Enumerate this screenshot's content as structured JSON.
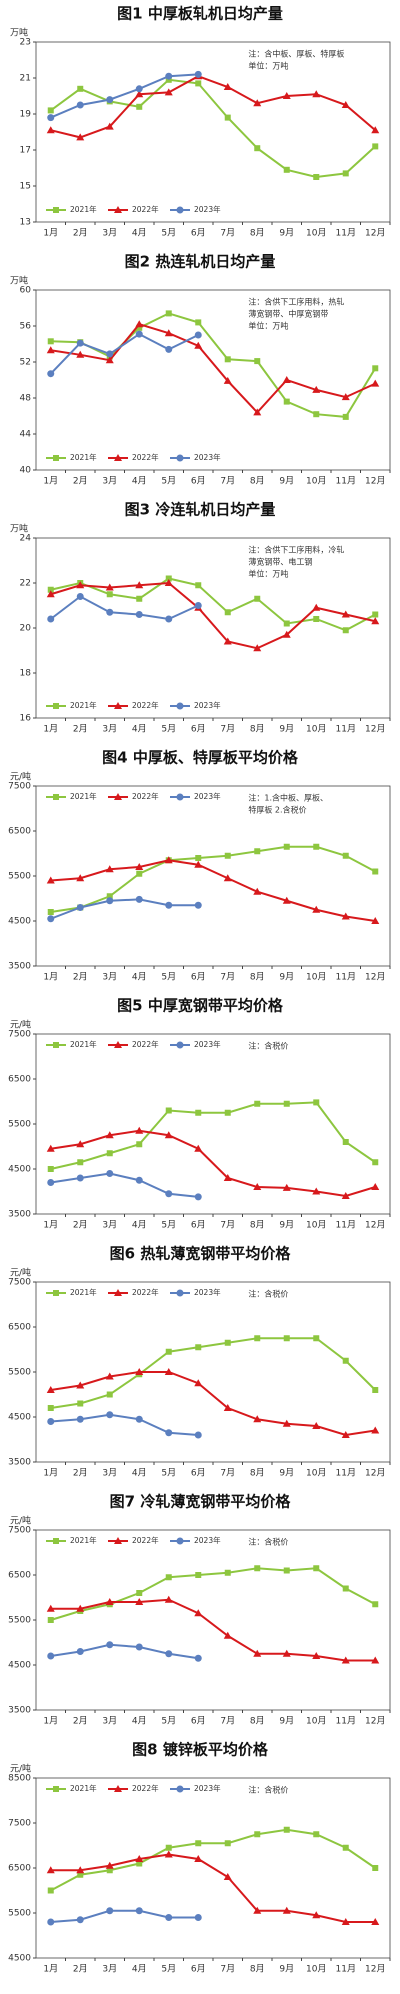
{
  "chart_data": [
    {
      "type": "line",
      "title": "图1  中厚板轧机日均产量",
      "ylabel": "万吨",
      "note": [
        "注：含中板、厚板、特厚板",
        "单位：万吨"
      ],
      "legend": "lower left",
      "categories": [
        "1月",
        "2月",
        "3月",
        "4月",
        "5月",
        "6月",
        "7月",
        "8月",
        "9月",
        "10月",
        "11月",
        "12月"
      ],
      "ylim": [
        13,
        23
      ],
      "yticks": [
        13,
        15,
        17,
        19,
        21,
        23
      ],
      "series": [
        {
          "name": "2021年",
          "color": "#8dc63f",
          "marker": "square",
          "values": [
            19.2,
            20.4,
            19.7,
            19.4,
            20.9,
            20.7,
            18.8,
            17.1,
            15.9,
            15.5,
            15.7,
            17.2
          ]
        },
        {
          "name": "2022年",
          "color": "#d7191c",
          "marker": "triangle",
          "values": [
            18.1,
            17.7,
            18.3,
            20.1,
            20.2,
            21.1,
            20.5,
            19.6,
            20.0,
            20.1,
            19.5,
            18.1
          ]
        },
        {
          "name": "2023年",
          "color": "#5b7fbf",
          "marker": "circle",
          "values": [
            18.8,
            19.5,
            19.8,
            20.4,
            21.1,
            21.2,
            null,
            null,
            null,
            null,
            null,
            null
          ]
        }
      ]
    },
    {
      "type": "line",
      "title": "图2  热连轧机日均产量",
      "ylabel": "万吨",
      "note": [
        "注：含供下工序用料，热轧",
        "薄宽钢带、中厚宽钢带",
        "单位：万吨"
      ],
      "legend": "lower left",
      "categories": [
        "1月",
        "2月",
        "3月",
        "4月",
        "5月",
        "6月",
        "7月",
        "8月",
        "9月",
        "10月",
        "11月",
        "12月"
      ],
      "ylim": [
        40,
        60
      ],
      "yticks": [
        40,
        44,
        48,
        52,
        56,
        60
      ],
      "series": [
        {
          "name": "2021年",
          "color": "#8dc63f",
          "marker": "square",
          "values": [
            54.3,
            54.2,
            52.6,
            55.8,
            57.4,
            56.4,
            52.3,
            52.1,
            47.6,
            46.2,
            45.9,
            51.3
          ]
        },
        {
          "name": "2022年",
          "color": "#d7191c",
          "marker": "triangle",
          "values": [
            53.3,
            52.8,
            52.2,
            56.2,
            55.2,
            53.8,
            49.9,
            46.4,
            50.0,
            48.9,
            48.1,
            49.6
          ]
        },
        {
          "name": "2023年",
          "color": "#5b7fbf",
          "marker": "circle",
          "values": [
            50.7,
            54.1,
            52.9,
            55.1,
            53.4,
            55.0,
            null,
            null,
            null,
            null,
            null,
            null
          ]
        }
      ]
    },
    {
      "type": "line",
      "title": "图3  冷连轧机日均产量",
      "ylabel": "万吨",
      "note": [
        "注：含供下工序用料，冷轧",
        "薄宽钢带、电工钢",
        "单位：万吨"
      ],
      "legend": "lower left",
      "categories": [
        "1月",
        "2月",
        "3月",
        "4月",
        "5月",
        "6月",
        "7月",
        "8月",
        "9月",
        "10月",
        "11月",
        "12月"
      ],
      "ylim": [
        16,
        24
      ],
      "yticks": [
        16,
        18,
        20,
        22,
        24
      ],
      "series": [
        {
          "name": "2021年",
          "color": "#8dc63f",
          "marker": "square",
          "values": [
            21.7,
            22.0,
            21.5,
            21.3,
            22.2,
            21.9,
            20.7,
            21.3,
            20.2,
            20.4,
            19.9,
            20.6
          ]
        },
        {
          "name": "2022年",
          "color": "#d7191c",
          "marker": "triangle",
          "values": [
            21.5,
            21.9,
            21.8,
            21.9,
            22.0,
            20.9,
            19.4,
            19.1,
            19.7,
            20.9,
            20.6,
            20.3
          ]
        },
        {
          "name": "2023年",
          "color": "#5b7fbf",
          "marker": "circle",
          "values": [
            20.4,
            21.4,
            20.7,
            20.6,
            20.4,
            21.0,
            null,
            null,
            null,
            null,
            null,
            null
          ]
        }
      ]
    },
    {
      "type": "line",
      "title": "图4  中厚板、特厚板平均价格",
      "ylabel": "元/吨",
      "note": [
        "注：1.含中板、厚板、",
        "特厚板  2.含税价"
      ],
      "legend": "upper left",
      "categories": [
        "1月",
        "2月",
        "3月",
        "4月",
        "5月",
        "6月",
        "7月",
        "8月",
        "9月",
        "10月",
        "11月",
        "12月"
      ],
      "ylim": [
        3500,
        7500
      ],
      "yticks": [
        3500,
        4500,
        5500,
        6500,
        7500
      ],
      "series": [
        {
          "name": "2021年",
          "color": "#8dc63f",
          "marker": "square",
          "values": [
            4700,
            4800,
            5050,
            5550,
            5850,
            5900,
            5950,
            6050,
            6150,
            6150,
            5950,
            5600
          ]
        },
        {
          "name": "2022年",
          "color": "#d7191c",
          "marker": "triangle",
          "values": [
            5400,
            5450,
            5650,
            5700,
            5850,
            5750,
            5450,
            5150,
            4950,
            4750,
            4600,
            4500
          ]
        },
        {
          "name": "2023年",
          "color": "#5b7fbf",
          "marker": "circle",
          "values": [
            4550,
            4800,
            4950,
            4980,
            4850,
            4850,
            null,
            null,
            null,
            null,
            null,
            null
          ]
        }
      ]
    },
    {
      "type": "line",
      "title": "图5  中厚宽钢带平均价格",
      "ylabel": "元/吨",
      "note": [
        "注：含税价"
      ],
      "legend": "upper left",
      "categories": [
        "1月",
        "2月",
        "3月",
        "4月",
        "5月",
        "6月",
        "7月",
        "8月",
        "9月",
        "10月",
        "11月",
        "12月"
      ],
      "ylim": [
        3500,
        7500
      ],
      "yticks": [
        3500,
        4500,
        5500,
        6500,
        7500
      ],
      "series": [
        {
          "name": "2021年",
          "color": "#8dc63f",
          "marker": "square",
          "values": [
            4500,
            4650,
            4850,
            5050,
            5800,
            5750,
            5750,
            5950,
            5950,
            5980,
            5100,
            4650
          ]
        },
        {
          "name": "2022年",
          "color": "#d7191c",
          "marker": "triangle",
          "values": [
            4950,
            5050,
            5250,
            5350,
            5250,
            4950,
            4300,
            4100,
            4080,
            4000,
            3900,
            4100
          ]
        },
        {
          "name": "2023年",
          "color": "#5b7fbf",
          "marker": "circle",
          "values": [
            4200,
            4300,
            4400,
            4250,
            3950,
            3880,
            null,
            null,
            null,
            null,
            null,
            null
          ]
        }
      ]
    },
    {
      "type": "line",
      "title": "图6  热轧薄宽钢带平均价格",
      "ylabel": "元/吨",
      "note": [
        "注：含税价"
      ],
      "legend": "upper left",
      "categories": [
        "1月",
        "2月",
        "3月",
        "4月",
        "5月",
        "6月",
        "7月",
        "8月",
        "9月",
        "10月",
        "11月",
        "12月"
      ],
      "ylim": [
        3500,
        7500
      ],
      "yticks": [
        3500,
        4500,
        5500,
        6500,
        7500
      ],
      "series": [
        {
          "name": "2021年",
          "color": "#8dc63f",
          "marker": "square",
          "values": [
            4700,
            4800,
            5000,
            5450,
            5950,
            6050,
            6150,
            6250,
            6250,
            6250,
            5750,
            5100
          ]
        },
        {
          "name": "2022年",
          "color": "#d7191c",
          "marker": "triangle",
          "values": [
            5100,
            5200,
            5400,
            5500,
            5500,
            5250,
            4700,
            4450,
            4350,
            4300,
            4100,
            4200
          ]
        },
        {
          "name": "2023年",
          "color": "#5b7fbf",
          "marker": "circle",
          "values": [
            4400,
            4450,
            4550,
            4450,
            4150,
            4100,
            null,
            null,
            null,
            null,
            null,
            null
          ]
        }
      ]
    },
    {
      "type": "line",
      "title": "图7  冷轧薄宽钢带平均价格",
      "ylabel": "元/吨",
      "note": [
        "注：含税价"
      ],
      "legend": "upper left",
      "categories": [
        "1月",
        "2月",
        "3月",
        "4月",
        "5月",
        "6月",
        "7月",
        "8月",
        "9月",
        "10月",
        "11月",
        "12月"
      ],
      "ylim": [
        3500,
        7500
      ],
      "yticks": [
        3500,
        4500,
        5500,
        6500,
        7500
      ],
      "series": [
        {
          "name": "2021年",
          "color": "#8dc63f",
          "marker": "square",
          "values": [
            5500,
            5700,
            5850,
            6100,
            6450,
            6500,
            6550,
            6650,
            6600,
            6650,
            6200,
            5850
          ]
        },
        {
          "name": "2022年",
          "color": "#d7191c",
          "marker": "triangle",
          "values": [
            5750,
            5750,
            5900,
            5900,
            5950,
            5650,
            5150,
            4750,
            4750,
            4700,
            4600,
            4600
          ]
        },
        {
          "name": "2023年",
          "color": "#5b7fbf",
          "marker": "circle",
          "values": [
            4700,
            4800,
            4950,
            4900,
            4750,
            4650,
            null,
            null,
            null,
            null,
            null,
            null
          ]
        }
      ]
    },
    {
      "type": "line",
      "title": "图8  镀锌板平均价格",
      "ylabel": "元/吨",
      "note": [
        "注：含税价"
      ],
      "legend": "upper left",
      "categories": [
        "1月",
        "2月",
        "3月",
        "4月",
        "5月",
        "6月",
        "7月",
        "8月",
        "9月",
        "10月",
        "11月",
        "12月"
      ],
      "ylim": [
        4500,
        8500
      ],
      "yticks": [
        4500,
        5500,
        6500,
        7500,
        8500
      ],
      "series": [
        {
          "name": "2021年",
          "color": "#8dc63f",
          "marker": "square",
          "values": [
            6000,
            6350,
            6450,
            6600,
            6950,
            7050,
            7050,
            7250,
            7350,
            7250,
            6950,
            6500
          ]
        },
        {
          "name": "2022年",
          "color": "#d7191c",
          "marker": "triangle",
          "values": [
            6450,
            6450,
            6550,
            6700,
            6800,
            6700,
            6300,
            5550,
            5550,
            5450,
            5300,
            5300
          ]
        },
        {
          "name": "2023年",
          "color": "#5b7fbf",
          "marker": "circle",
          "values": [
            5300,
            5350,
            5550,
            5550,
            5400,
            5400,
            null,
            null,
            null,
            null,
            null,
            null
          ]
        }
      ]
    }
  ]
}
